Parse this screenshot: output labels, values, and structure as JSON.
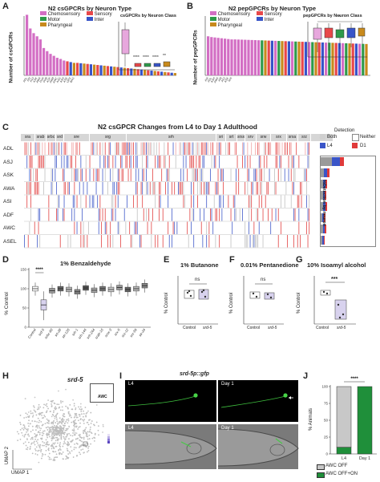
{
  "panelA": {
    "letter": "A",
    "title": "N2 csGPCRs by Neuron Type",
    "ylabel": "Number of csGPCRs",
    "legend": [
      "Chemosensory",
      "Sensory",
      "Motor",
      "Inter",
      "Pharyngeal"
    ],
    "inset_title": "csGPCRs by Neuron Class",
    "inset_sig": [
      "****",
      "****",
      "****",
      "**"
    ]
  },
  "panelB": {
    "letter": "B",
    "title": "N2 pepGPCRs by Neuron Type",
    "ylabel": "Number of pepGPCRs",
    "legend": [
      "Chemosensory",
      "Sensory",
      "Motor",
      "Inter",
      "Pharyngeal"
    ],
    "inset_title": "pepGPCRs by Neuron Class",
    "inset_sig": "*"
  },
  "panelC": {
    "letter": "C",
    "title": "N2 csGPCR Changes from L4 to Day 1 Adulthood",
    "neurons": [
      "ADL",
      "ASJ",
      "ASK",
      "AWA",
      "ASI",
      "ADF",
      "AWC",
      "ASEL"
    ],
    "families": [
      "sra",
      "srab",
      "srbc",
      "srd",
      "sre",
      "srg",
      "srh",
      "sri",
      "srt",
      "srsx",
      "srv",
      "srw",
      "srx",
      "srxa",
      "srz",
      "str"
    ],
    "detection_title": "Detection",
    "detection": [
      "Both",
      "Neither",
      "L4",
      "D1"
    ],
    "side_label": "%Detection by neuron"
  },
  "panelD": {
    "letter": "D",
    "title": "1% Benzaldehyde",
    "ylabel": "% Control",
    "sig": "****",
    "ticks": [
      "150",
      "100",
      "50",
      "0"
    ],
    "categories": [
      "Control",
      "srd-5",
      "srbc-60",
      "srt-28",
      "str-126",
      "srh-1",
      "srh-144",
      "srh-244",
      "srab-16",
      "srsx-3",
      "srx-5",
      "srz-12",
      "srx-59",
      "str-24"
    ]
  },
  "panelE": {
    "letter": "E",
    "title": "1% Butanone",
    "ylabel": "% Control",
    "sig": "ns",
    "categories": [
      "Control",
      "srd-5"
    ]
  },
  "panelF": {
    "letter": "F",
    "title": "0.01% Pentanedione",
    "ylabel": "% Control",
    "sig": "ns",
    "categories": [
      "Control",
      "srd-5"
    ]
  },
  "panelG": {
    "letter": "G",
    "title": "10% Isoamyl alcohol",
    "ylabel": "% Control",
    "sig": "***",
    "categories": [
      "Control",
      "srd-5"
    ]
  },
  "panelH": {
    "letter": "H",
    "gene": "srd-5",
    "inset_label": "AWC",
    "xlabel": "UMAP 1",
    "ylabel": "UMAP 2"
  },
  "panelI": {
    "letter": "I",
    "title": "srd-5p::gfp",
    "stages": [
      "L4",
      "Day 1",
      "L4",
      "Day 1"
    ]
  },
  "panelJ": {
    "letter": "J",
    "ylabel": "% Animals",
    "sig": "****",
    "categories": [
      "L4",
      "Day 1"
    ],
    "legend": [
      "AWC OFF",
      "AWC OFF+ON"
    ],
    "ticks": [
      "100",
      "75",
      "50",
      "25",
      "0"
    ]
  },
  "colors": {
    "chemosensory": "#d36ec4",
    "sensory": "#e8474a",
    "motor": "#2e9a4a",
    "inter": "#3754c8",
    "pharyngeal": "#c88a1c",
    "d1": "#e03a3a",
    "l4": "#3a55c8",
    "awc_on": "#1f8f3a"
  },
  "chart_data": [
    {
      "type": "bar",
      "title": "N2 csGPCRs by Neuron Type",
      "ylabel": "Number of csGPCRs",
      "categories": [
        "ADL",
        "ASI",
        "ASJ",
        "ASK",
        "AWA",
        "PHA",
        "PHB",
        "ADF",
        "AWB",
        "AWC",
        "ASG",
        "ASH",
        "ASE",
        "URX",
        "BAG"
      ],
      "values": [
        155,
        120,
        108,
        100,
        92,
        70,
        62,
        55,
        50,
        45,
        42,
        38,
        36,
        34,
        32
      ]
    },
    {
      "type": "bar",
      "title": "N2 pepGPCRs by Neuron Type",
      "ylabel": "Number of pepGPCRs",
      "categories": [
        "AIA",
        "ADL",
        "ASH",
        "AWA",
        "AIB",
        "ASJ",
        "ASK",
        "RIA"
      ],
      "values": [
        100,
        98,
        97,
        96,
        95,
        94,
        93,
        92
      ]
    },
    {
      "type": "bar",
      "title": "1% Benzaldehyde",
      "ylabel": "% Control",
      "ylim": [
        0,
        150
      ],
      "categories": [
        "Control",
        "srd-5",
        "srbc-60",
        "srt-28",
        "str-126",
        "srh-1",
        "srh-144",
        "srh-244",
        "srab-16",
        "srsx-3",
        "srx-5",
        "srz-12",
        "srx-59",
        "str-24"
      ],
      "values": [
        100,
        58,
        95,
        100,
        98,
        92,
        102,
        96,
        100,
        98,
        103,
        98,
        100,
        108
      ]
    },
    {
      "type": "bar",
      "title": "% Animals",
      "categories": [
        "L4",
        "Day 1"
      ],
      "series": [
        {
          "name": "AWC OFF",
          "values": [
            90,
            0
          ]
        },
        {
          "name": "AWC OFF+ON",
          "values": [
            10,
            100
          ]
        }
      ],
      "ylim": [
        0,
        100
      ]
    }
  ]
}
